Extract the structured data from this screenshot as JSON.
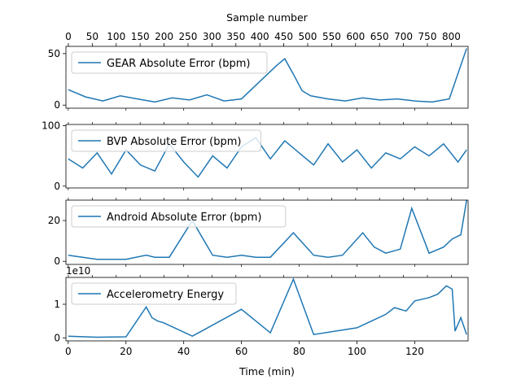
{
  "chart_data": {
    "type": "line",
    "figure": {
      "top_xlabel": "Sample number",
      "bottom_xlabel": "Time (min)",
      "top_xlim": [
        -5,
        835
      ],
      "top_xticks": [
        0,
        50,
        100,
        150,
        200,
        250,
        300,
        350,
        400,
        450,
        500,
        550,
        600,
        650,
        700,
        750,
        800
      ],
      "bottom_xlim": [
        -0.8,
        138.5
      ],
      "bottom_xticks": [
        0,
        20,
        40,
        60,
        80,
        100,
        120
      ],
      "line_color": "#1f77b4",
      "grid": false,
      "legend_position": "upper-left"
    },
    "panels": [
      {
        "legend": "GEAR Absolute Error (bpm)",
        "ylim": [
          -3,
          57
        ],
        "yticks": [
          0,
          50
        ],
        "x": [
          0,
          6,
          12,
          18,
          24,
          30,
          36,
          42,
          48,
          54,
          60,
          66,
          72,
          75,
          78,
          81,
          84,
          90,
          96,
          102,
          108,
          114,
          120,
          126,
          132,
          138
        ],
        "y": [
          15,
          8,
          4,
          9,
          6,
          3,
          7,
          5,
          10,
          4,
          6,
          22,
          38,
          45,
          30,
          14,
          9,
          6,
          4,
          7,
          5,
          6,
          4,
          3,
          6,
          55
        ]
      },
      {
        "legend": "BVP Absolute Error (bpm)",
        "ylim": [
          -3,
          102
        ],
        "yticks": [
          0,
          100
        ],
        "x": [
          0,
          5,
          10,
          15,
          20,
          25,
          30,
          35,
          40,
          45,
          50,
          55,
          60,
          65,
          70,
          75,
          80,
          85,
          90,
          95,
          100,
          105,
          110,
          115,
          120,
          125,
          130,
          135,
          138
        ],
        "y": [
          45,
          30,
          55,
          20,
          60,
          35,
          25,
          70,
          40,
          15,
          50,
          30,
          65,
          80,
          45,
          75,
          55,
          35,
          70,
          40,
          60,
          30,
          55,
          45,
          65,
          50,
          70,
          40,
          60
        ]
      },
      {
        "legend": "Android Absolute Error (bpm)",
        "ylim": [
          -1.5,
          30
        ],
        "yticks": [
          0,
          20
        ],
        "x": [
          0,
          10,
          20,
          27,
          30,
          35,
          43,
          50,
          55,
          60,
          65,
          70,
          78,
          85,
          90,
          95,
          102,
          106,
          110,
          115,
          119,
          125,
          130,
          133,
          136,
          138
        ],
        "y": [
          3,
          1,
          1,
          3,
          2,
          2,
          20,
          3,
          2,
          3,
          2,
          2,
          14,
          3,
          2,
          3,
          14,
          7,
          4,
          6,
          26,
          4,
          7,
          11,
          13,
          30
        ]
      },
      {
        "legend": "Accelerometry Energy",
        "offset_text": "1e10",
        "ylim": [
          -0.09,
          1.8
        ],
        "yticks": [
          0,
          1
        ],
        "x": [
          0,
          10,
          20,
          27,
          29,
          31,
          33,
          43,
          60,
          70,
          78,
          85,
          100,
          105,
          110,
          113,
          117,
          120,
          125,
          128,
          131,
          132,
          133,
          134,
          136,
          138
        ],
        "y": [
          0.05,
          0.02,
          0.03,
          0.92,
          0.6,
          0.5,
          0.45,
          0.05,
          0.85,
          0.15,
          1.75,
          0.1,
          0.3,
          0.5,
          0.7,
          0.9,
          0.8,
          1.1,
          1.2,
          1.3,
          1.55,
          1.5,
          1.45,
          0.2,
          0.6,
          0.1
        ]
      }
    ]
  }
}
